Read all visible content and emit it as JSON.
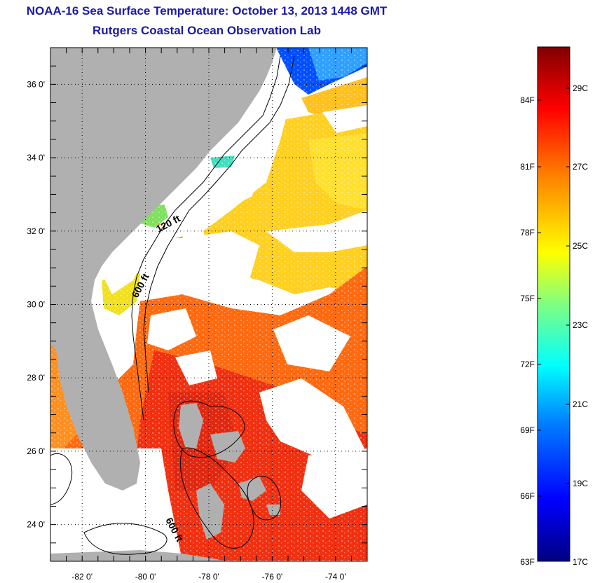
{
  "title": {
    "line1": "NOAA-16 Sea Surface Temperature:  October 13, 2013 1448 GMT",
    "line2": "Rutgers Coastal Ocean Observation Lab"
  },
  "map": {
    "lat_ticks": [
      {
        "value": 36,
        "label": "36 0'"
      },
      {
        "value": 34,
        "label": "34 0'"
      },
      {
        "value": 32,
        "label": "32 0'"
      },
      {
        "value": 30,
        "label": "30 0'"
      },
      {
        "value": 28,
        "label": "28 0'"
      },
      {
        "value": 26,
        "label": "26 0'"
      },
      {
        "value": 24,
        "label": "24 0'"
      }
    ],
    "lon_ticks": [
      {
        "value": -82,
        "label": "-82 0'"
      },
      {
        "value": -80,
        "label": "-80 0'"
      },
      {
        "value": -78,
        "label": "-78 0'"
      },
      {
        "value": -76,
        "label": "-76 0'"
      },
      {
        "value": -74,
        "label": "-74 0'"
      }
    ],
    "lat_range": [
      23,
      37
    ],
    "lon_range": [
      -83,
      -73
    ],
    "contour_labels": [
      {
        "text": "120 ft"
      },
      {
        "text": "600 ft"
      },
      {
        "text": "600 ft"
      }
    ],
    "colors": {
      "land": "#b0b0b0",
      "cloud": "#ffffff"
    }
  },
  "colorbar": {
    "fahrenheit_labels": [
      "84F",
      "81F",
      "78F",
      "75F",
      "72F",
      "69F",
      "66F",
      "63F"
    ],
    "celsius_labels": [
      "29C",
      "27C",
      "25C",
      "23C",
      "21C",
      "19C",
      "17C"
    ],
    "colors": [
      "#000080",
      "#0000ff",
      "#0080ff",
      "#00ffff",
      "#80ff80",
      "#ffff00",
      "#ff8000",
      "#ff0000",
      "#800000"
    ]
  }
}
